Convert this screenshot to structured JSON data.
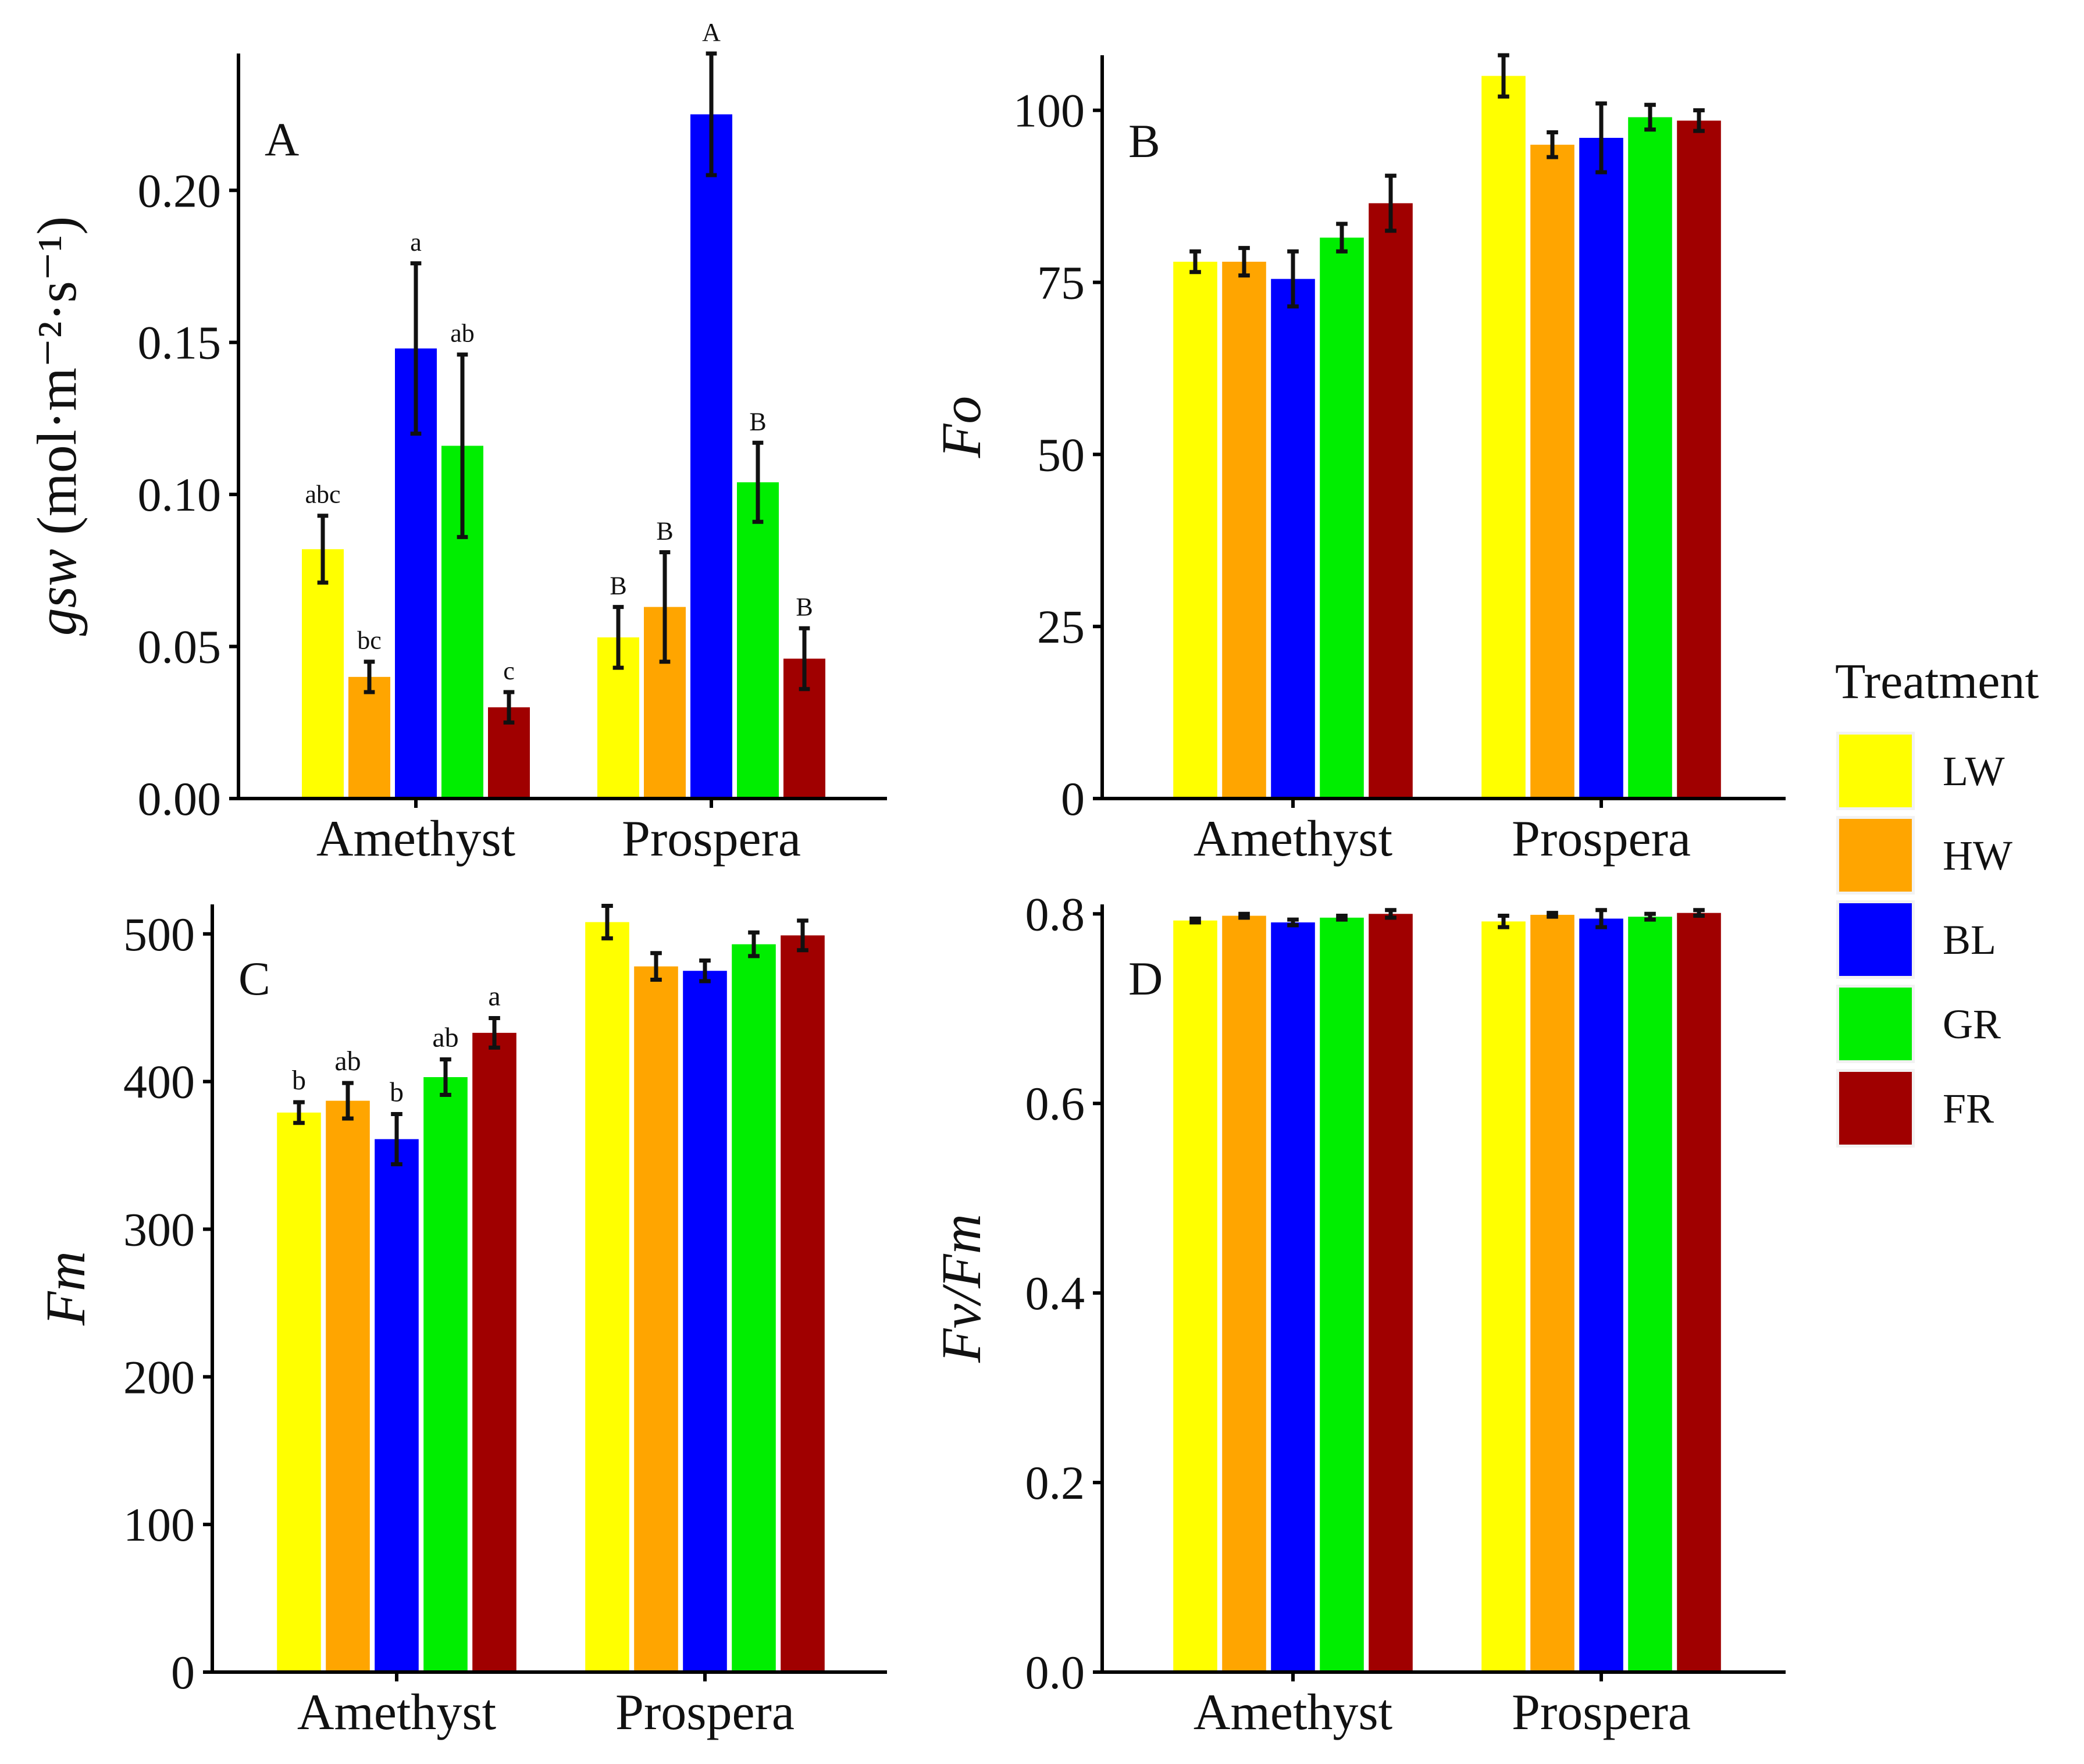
{
  "colors": {
    "LW": "#ffff00",
    "HW": "#ffa500",
    "BL": "#0000ff",
    "GR": "#00ee00",
    "FR": "#a00000",
    "axis": "#000000",
    "error": "#111111"
  },
  "legend": {
    "title": "Treatment",
    "items": [
      {
        "key": "LW",
        "label": "LW"
      },
      {
        "key": "HW",
        "label": "HW"
      },
      {
        "key": "BL",
        "label": "BL"
      },
      {
        "key": "GR",
        "label": "GR"
      },
      {
        "key": "FR",
        "label": "FR"
      }
    ]
  },
  "chart_data": [
    {
      "type": "bar",
      "panel_label": "A",
      "ylabel_italic": "gsw",
      "ylabel_rest": " (mol·m⁻²·s⁻¹)",
      "ylim": [
        0,
        0.245
      ],
      "yticks": [
        0,
        0.05,
        0.1,
        0.15,
        0.2
      ],
      "ytick_labels": [
        "0.00",
        "0.05",
        "0.10",
        "0.15",
        "0.20"
      ],
      "categories": [
        "Amethyst",
        "Prospera"
      ],
      "series": [
        {
          "name": "LW",
          "values": [
            0.082,
            0.053
          ],
          "errors": [
            0.011,
            0.01
          ],
          "labels": [
            "abc",
            "B"
          ]
        },
        {
          "name": "HW",
          "values": [
            0.04,
            0.063
          ],
          "errors": [
            0.005,
            0.018
          ],
          "labels": [
            "bc",
            "B"
          ]
        },
        {
          "name": "BL",
          "values": [
            0.148,
            0.225
          ],
          "errors": [
            0.028,
            0.02
          ],
          "labels": [
            "a",
            "A"
          ]
        },
        {
          "name": "GR",
          "values": [
            0.116,
            0.104
          ],
          "errors": [
            0.03,
            0.013
          ],
          "labels": [
            "ab",
            "B"
          ]
        },
        {
          "name": "FR",
          "values": [
            0.03,
            0.046
          ],
          "errors": [
            0.005,
            0.01
          ],
          "labels": [
            "c",
            "B"
          ]
        }
      ]
    },
    {
      "type": "bar",
      "panel_label": "B",
      "ylabel_italic": "Fo",
      "ylabel_rest": "",
      "ylim": [
        0,
        108
      ],
      "yticks": [
        0,
        25,
        50,
        75,
        100
      ],
      "ytick_labels": [
        "0",
        "25",
        "50",
        "75",
        "100"
      ],
      "categories": [
        "Amethyst",
        "Prospera"
      ],
      "series": [
        {
          "name": "LW",
          "values": [
            78.0,
            105.0
          ],
          "errors": [
            1.5,
            3.0
          ],
          "labels": [
            "",
            ""
          ]
        },
        {
          "name": "HW",
          "values": [
            78.0,
            95.0
          ],
          "errors": [
            2.0,
            1.8
          ],
          "labels": [
            "",
            ""
          ]
        },
        {
          "name": "BL",
          "values": [
            75.5,
            96.0
          ],
          "errors": [
            4.0,
            5.0
          ],
          "labels": [
            "",
            ""
          ]
        },
        {
          "name": "GR",
          "values": [
            81.5,
            99.0
          ],
          "errors": [
            2.0,
            1.8
          ],
          "labels": [
            "",
            ""
          ]
        },
        {
          "name": "FR",
          "values": [
            86.5,
            98.5
          ],
          "errors": [
            4.0,
            1.5
          ],
          "labels": [
            "",
            ""
          ]
        }
      ]
    },
    {
      "type": "bar",
      "panel_label": "C",
      "ylabel_italic": "Fm",
      "ylabel_rest": "",
      "ylim": [
        0,
        520
      ],
      "yticks": [
        0,
        100,
        200,
        300,
        400,
        500
      ],
      "ytick_labels": [
        "0",
        "100",
        "200",
        "300",
        "400",
        "500"
      ],
      "categories": [
        "Amethyst",
        "Prospera"
      ],
      "series": [
        {
          "name": "LW",
          "values": [
            379,
            508
          ],
          "errors": [
            7,
            11
          ],
          "labels": [
            "b",
            ""
          ]
        },
        {
          "name": "HW",
          "values": [
            387,
            478
          ],
          "errors": [
            12,
            9
          ],
          "labels": [
            "ab",
            ""
          ]
        },
        {
          "name": "BL",
          "values": [
            361,
            475
          ],
          "errors": [
            17,
            7
          ],
          "labels": [
            "b",
            ""
          ]
        },
        {
          "name": "GR",
          "values": [
            403,
            493
          ],
          "errors": [
            12,
            8
          ],
          "labels": [
            "ab",
            ""
          ]
        },
        {
          "name": "FR",
          "values": [
            433,
            499
          ],
          "errors": [
            10,
            10
          ],
          "labels": [
            "a",
            ""
          ]
        }
      ]
    },
    {
      "type": "bar",
      "panel_label": "D",
      "ylabel_italic": "Fv/Fm",
      "ylabel_rest": "",
      "ylim": [
        0,
        0.81
      ],
      "yticks": [
        0,
        0.2,
        0.4,
        0.6,
        0.8
      ],
      "ytick_labels": [
        "0.0",
        "0.2",
        "0.4",
        "0.6",
        "0.8"
      ],
      "categories": [
        "Amethyst",
        "Prospera"
      ],
      "series": [
        {
          "name": "LW",
          "values": [
            0.793,
            0.792
          ],
          "errors": [
            0.002,
            0.006
          ],
          "labels": [
            "",
            ""
          ]
        },
        {
          "name": "HW",
          "values": [
            0.798,
            0.799
          ],
          "errors": [
            0.002,
            0.002
          ],
          "labels": [
            "",
            ""
          ]
        },
        {
          "name": "BL",
          "values": [
            0.791,
            0.795
          ],
          "errors": [
            0.003,
            0.009
          ],
          "labels": [
            "",
            ""
          ]
        },
        {
          "name": "GR",
          "values": [
            0.796,
            0.797
          ],
          "errors": [
            0.002,
            0.003
          ],
          "labels": [
            "",
            ""
          ]
        },
        {
          "name": "FR",
          "values": [
            0.8,
            0.801
          ],
          "errors": [
            0.004,
            0.003
          ],
          "labels": [
            "",
            ""
          ]
        }
      ]
    }
  ]
}
